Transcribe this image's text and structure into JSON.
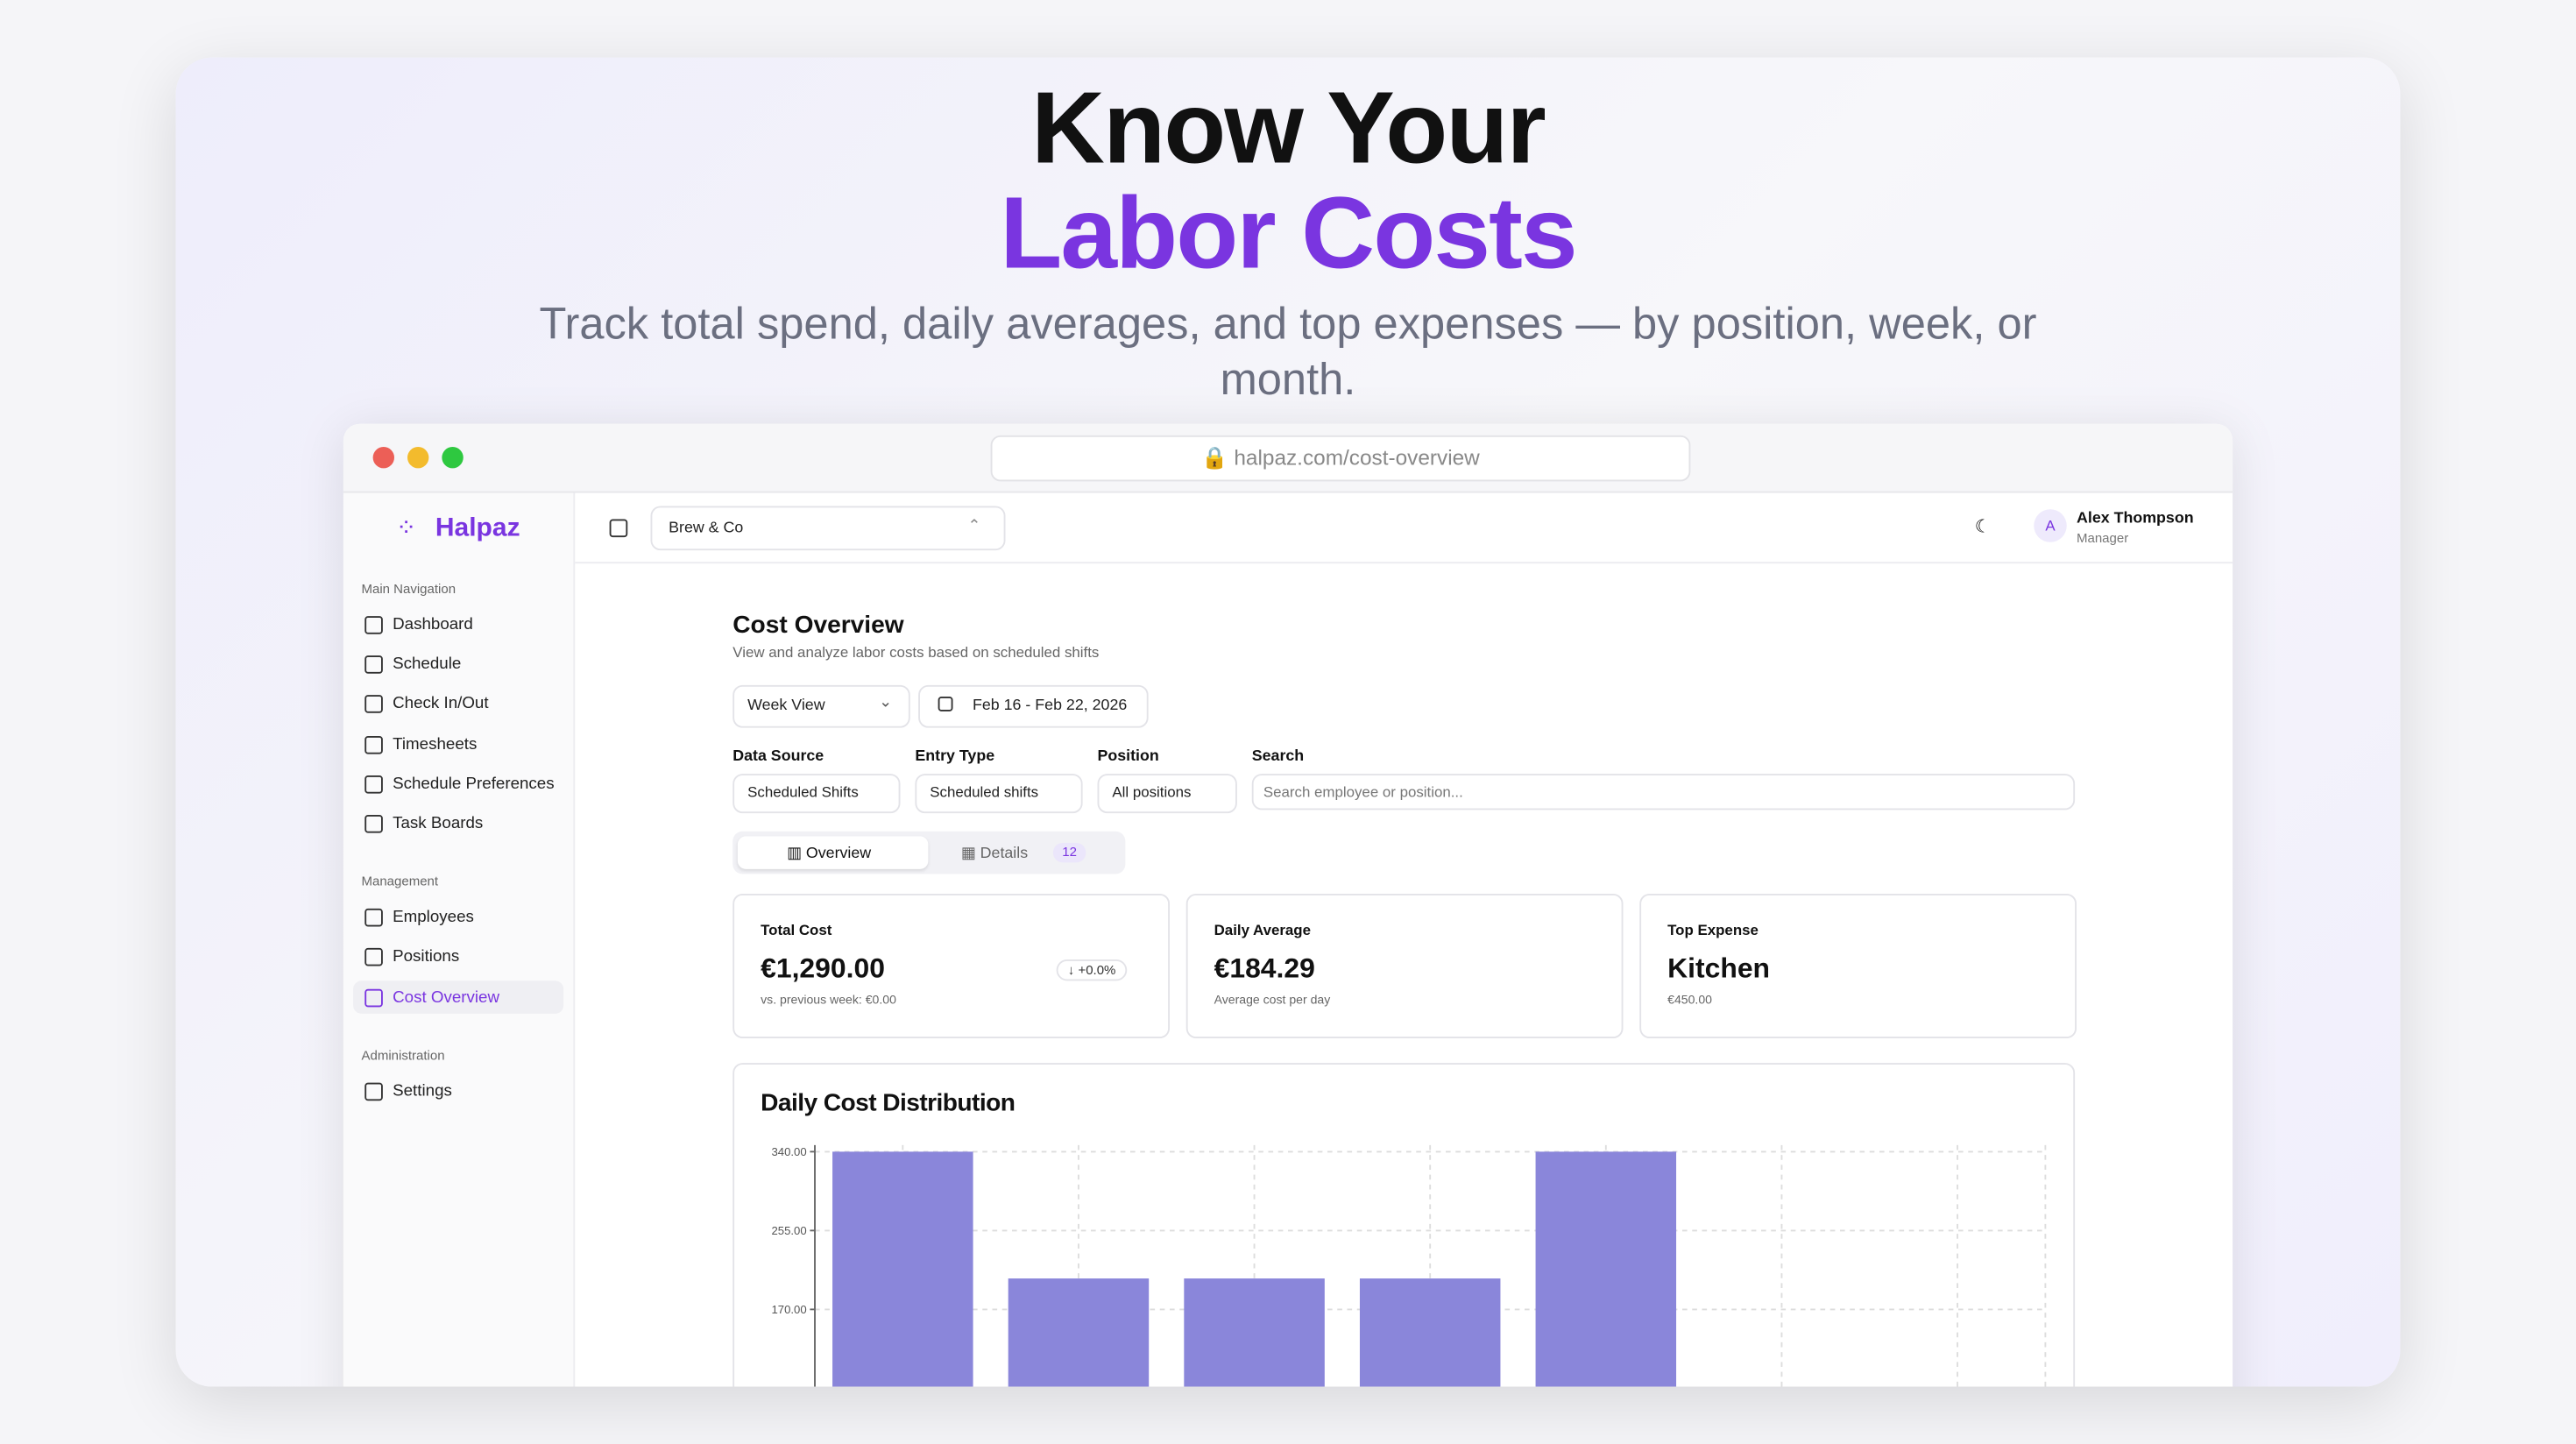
{
  "hero": {
    "title_line1": "Know Your",
    "title_line2": "Labor Costs",
    "subtitle": "Track total spend, daily averages, and top expenses — by position, week, or month."
  },
  "browser": {
    "url": "halpaz.com/cost-overview"
  },
  "sidebar": {
    "brand": "Halpaz",
    "sections": [
      {
        "title": "Main Navigation",
        "items": [
          "Dashboard",
          "Schedule",
          "Check In/Out",
          "Timesheets",
          "Schedule Preferences",
          "Task Boards"
        ]
      },
      {
        "title": "Management",
        "items": [
          "Employees",
          "Positions",
          "Cost Overview"
        ]
      },
      {
        "title": "Administration",
        "items": [
          "Settings"
        ]
      }
    ]
  },
  "topbar": {
    "workspace": "Brew & Co",
    "avatar": "A",
    "user_name": "Alex Thompson",
    "user_role": "Manager"
  },
  "page": {
    "title": "Cost Overview",
    "subtitle": "View and analyze labor costs based on scheduled shifts",
    "view": "Week View",
    "date_range": "Feb 16 - Feb 22, 2026"
  },
  "filters": [
    {
      "label": "Data Source",
      "value": "Scheduled Shifts"
    },
    {
      "label": "Entry Type",
      "value": "Scheduled shifts"
    },
    {
      "label": "Position",
      "value": "All positions"
    },
    {
      "label": "Search",
      "placeholder": "Search employee or position..."
    }
  ],
  "tabs": [
    {
      "label": "Overview"
    },
    {
      "label": "Details",
      "badge": 12
    }
  ],
  "cards": [
    {
      "title": "Total Cost",
      "value": "€1,290.00",
      "change": "+0.0%",
      "note": "vs. previous week: €0.00"
    },
    {
      "title": "Daily Average",
      "value": "€184.29",
      "note": "Average cost per day"
    },
    {
      "title": "Top Expense",
      "value": "Kitchen",
      "note": "€450.00"
    }
  ],
  "chart_data": {
    "type": "bar",
    "title": "Daily Cost Distribution",
    "categories": [
      null,
      null,
      null,
      null,
      null,
      null,
      null
    ],
    "values": [
      340,
      203.33,
      203.33,
      203.33,
      340,
      0,
      0
    ],
    "color": "#8a86da",
    "ylim": [
      0,
      340
    ],
    "yticks": [
      {
        "value": 170,
        "label": "170.00"
      },
      {
        "value": 255,
        "label": "255.00"
      },
      {
        "value": 340,
        "label": "340.00"
      }
    ],
    "grid": true
  }
}
